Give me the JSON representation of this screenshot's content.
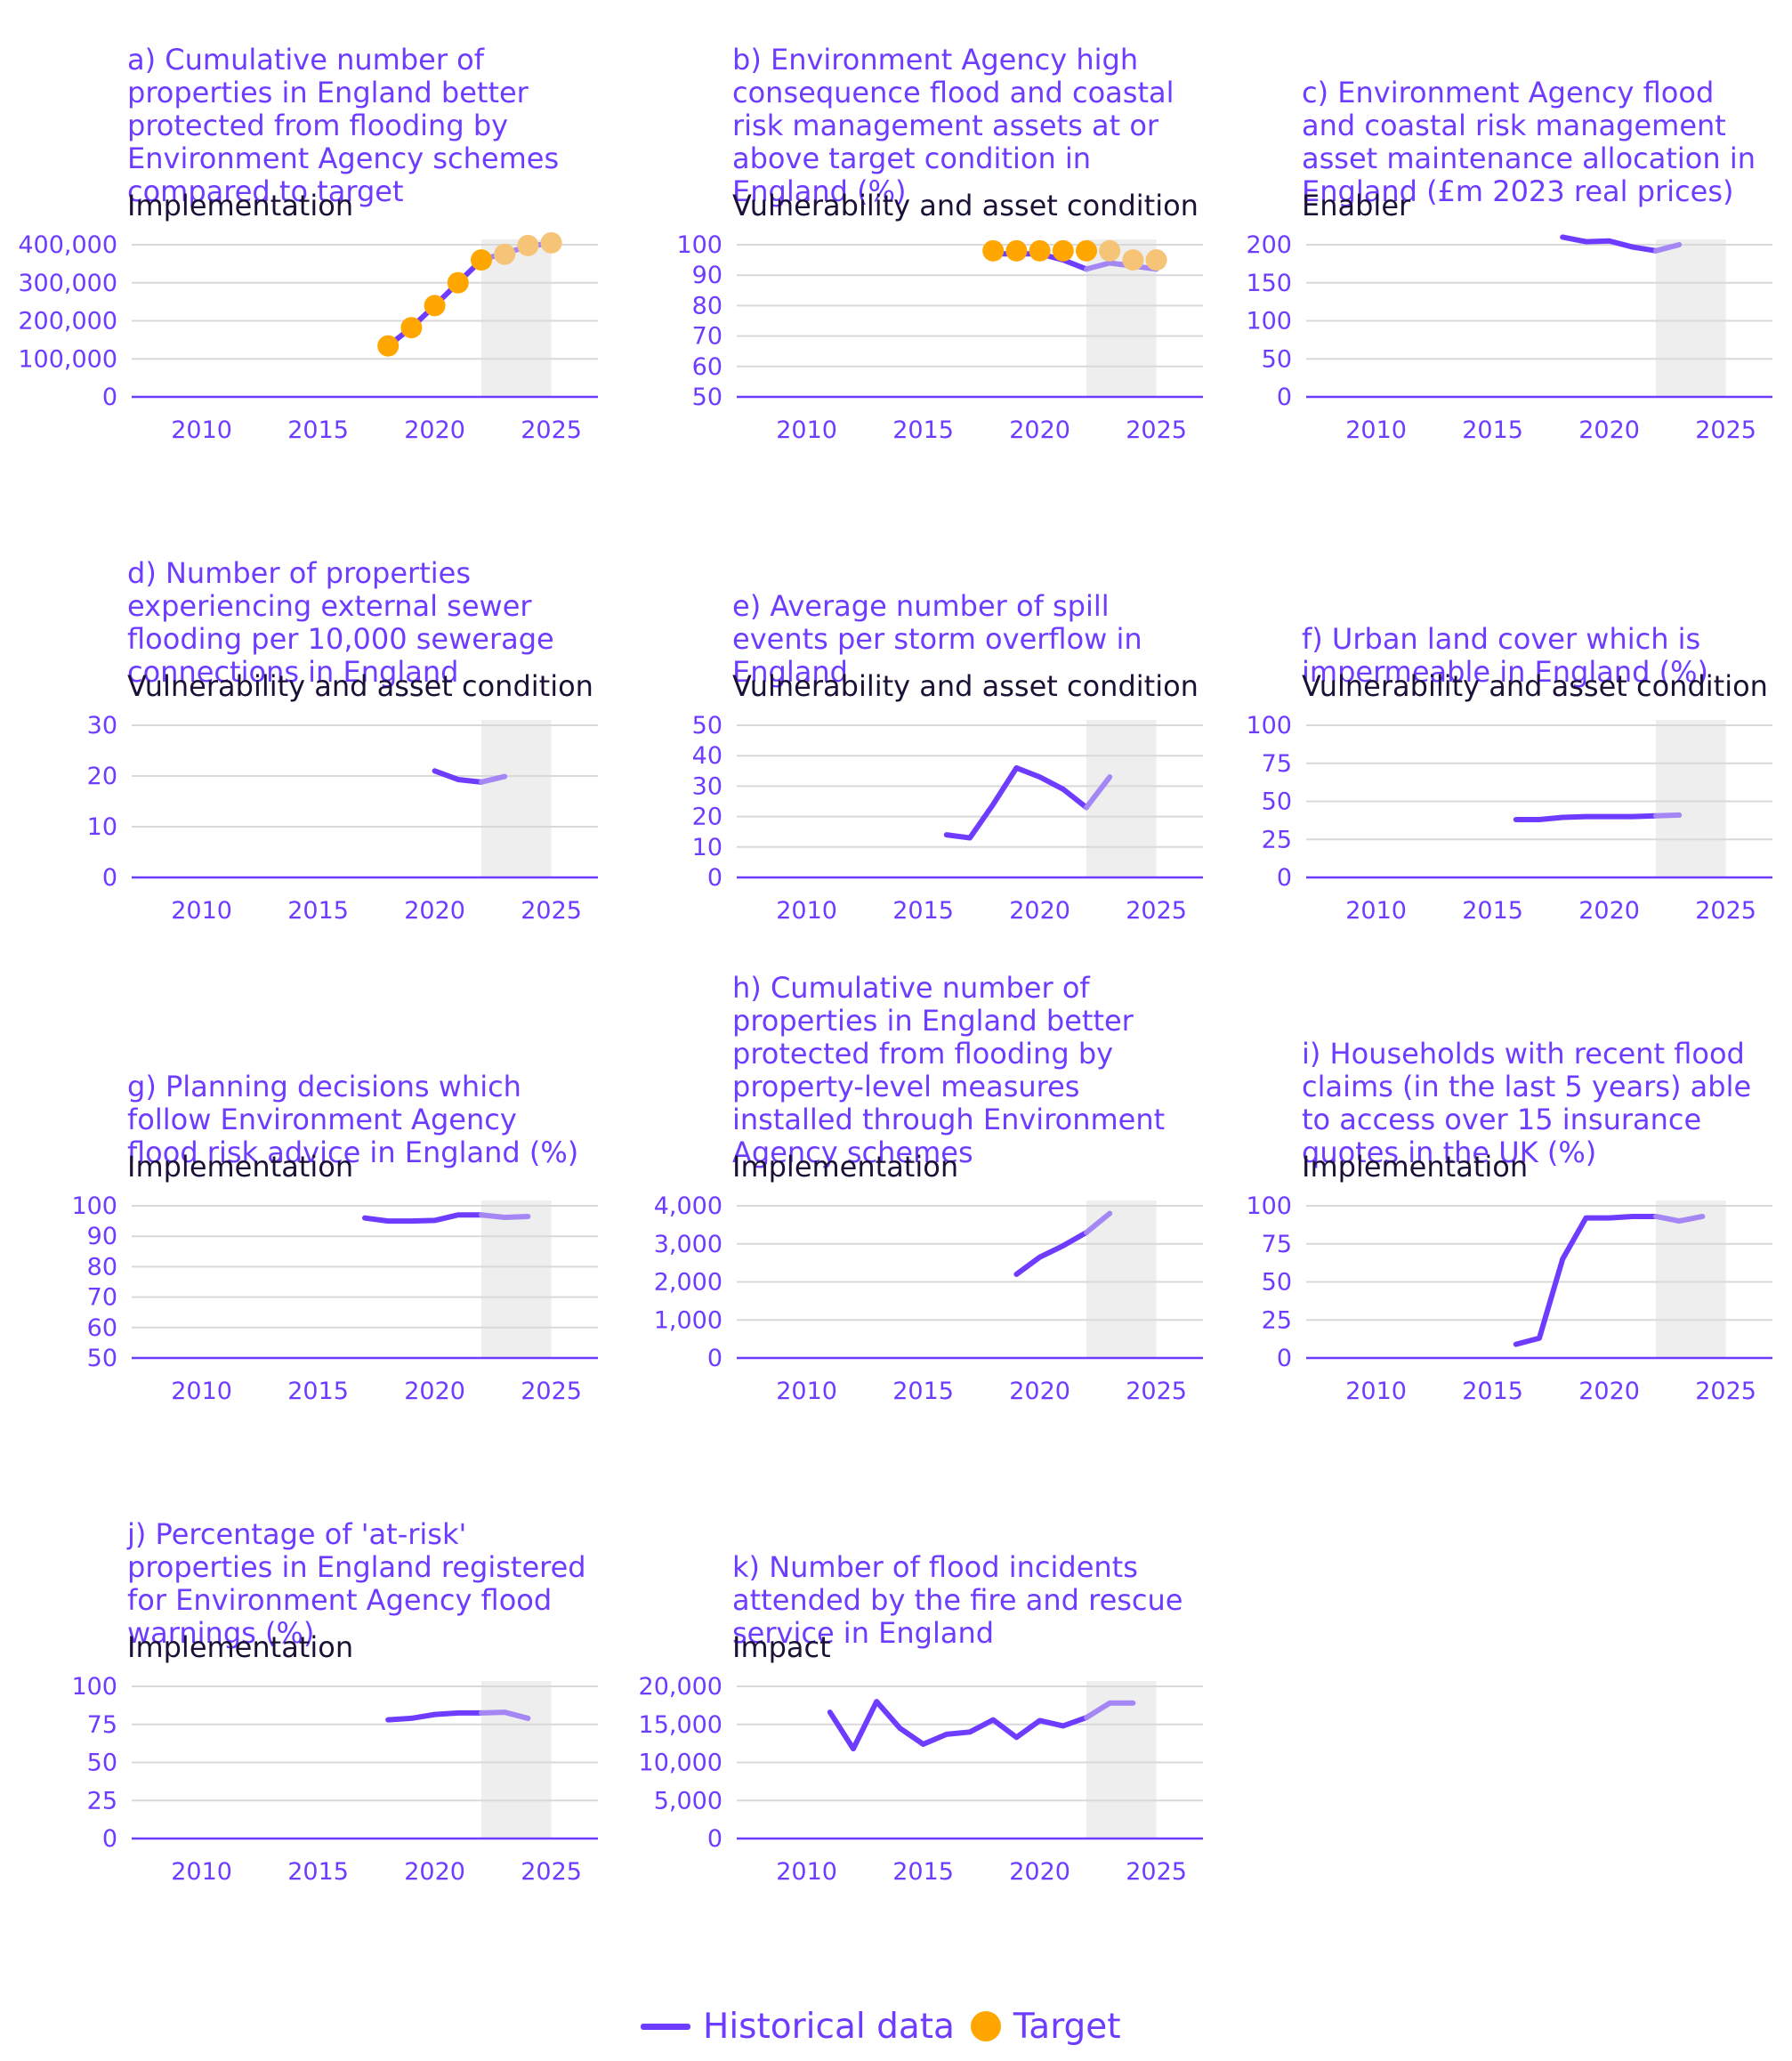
{
  "chart_data": [
    {
      "id": "a",
      "type": "line",
      "title": "a) Cumulative number of properties in England better protected from flooding by Environment Agency schemes compared to target",
      "subtitle": "Implementation",
      "xlim": [
        2007,
        2027
      ],
      "xticks": [
        2010,
        2015,
        2020,
        2025
      ],
      "ylim": [
        0,
        400000
      ],
      "yticks": [
        0,
        100000,
        200000,
        300000,
        400000
      ],
      "ytick_labels": [
        "0",
        "100,000",
        "200,000",
        "300,000",
        "400,000"
      ],
      "shade": [
        2022,
        2025
      ],
      "series": [
        {
          "name": "Historical data",
          "x": [
            2018,
            2019,
            2020,
            2021,
            2022
          ],
          "y": [
            134000,
            182000,
            240000,
            300000,
            360000
          ]
        },
        {
          "name": "Historical data",
          "x": [
            2022,
            2023,
            2024,
            2025
          ],
          "y": [
            360000,
            378000,
            395000,
            405000
          ],
          "style": "light"
        }
      ],
      "targets": {
        "name": "Target",
        "x": [
          2018,
          2019,
          2020,
          2021,
          2022,
          2023,
          2024,
          2025
        ],
        "y": [
          134000,
          182000,
          240000,
          300000,
          360000,
          375000,
          398000,
          405000
        ]
      }
    },
    {
      "id": "b",
      "type": "line",
      "title": "b) Environment Agency high consequence flood and coastal risk management assets at or above target condition in England (%)",
      "subtitle": "Vulnerability and asset condition",
      "xlim": [
        2007,
        2027
      ],
      "xticks": [
        2010,
        2015,
        2020,
        2025
      ],
      "ylim": [
        50,
        100
      ],
      "yticks": [
        50,
        60,
        70,
        80,
        90,
        100
      ],
      "ytick_labels": [
        "50",
        "60",
        "70",
        "80",
        "90",
        "100"
      ],
      "shade": [
        2022,
        2025
      ],
      "series": [
        {
          "name": "Historical data",
          "x": [
            2018,
            2019,
            2020,
            2021,
            2022
          ],
          "y": [
            97,
            97,
            97,
            95,
            92
          ]
        },
        {
          "name": "Historical data",
          "x": [
            2022,
            2023,
            2024,
            2025
          ],
          "y": [
            92,
            94,
            93,
            92
          ],
          "style": "light"
        }
      ],
      "targets": {
        "name": "Target",
        "x": [
          2018,
          2019,
          2020,
          2021,
          2022,
          2023,
          2024,
          2025
        ],
        "y": [
          98,
          98,
          98,
          98,
          98,
          98,
          95,
          95
        ]
      }
    },
    {
      "id": "c",
      "type": "line",
      "title": "c) Environment Agency flood and coastal risk management asset maintenance allocation in England (£m 2023 real prices)",
      "subtitle": "Enabler",
      "xlim": [
        2007,
        2027
      ],
      "xticks": [
        2010,
        2015,
        2020,
        2025
      ],
      "ylim": [
        0,
        200
      ],
      "yticks": [
        0,
        50,
        100,
        150,
        200
      ],
      "ytick_labels": [
        "0",
        "50",
        "100",
        "150",
        "200"
      ],
      "shade": [
        2022,
        2025
      ],
      "series": [
        {
          "name": "Historical data",
          "x": [
            2018,
            2019,
            2020,
            2021,
            2022
          ],
          "y": [
            210,
            204,
            205,
            197,
            192
          ]
        },
        {
          "name": "Historical data",
          "x": [
            2022,
            2023
          ],
          "y": [
            192,
            200
          ],
          "style": "light"
        }
      ]
    },
    {
      "id": "d",
      "type": "line",
      "title": "d) Number of properties experiencing external sewer flooding per 10,000 sewerage connections in England",
      "subtitle": "Vulnerability and asset condition",
      "xlim": [
        2007,
        2027
      ],
      "xticks": [
        2010,
        2015,
        2020,
        2025
      ],
      "ylim": [
        0,
        30
      ],
      "yticks": [
        0,
        10,
        20,
        30
      ],
      "ytick_labels": [
        "0",
        "10",
        "20",
        "30"
      ],
      "shade": [
        2022,
        2025
      ],
      "series": [
        {
          "name": "Historical data",
          "x": [
            2020,
            2021,
            2022
          ],
          "y": [
            21,
            19.3,
            18.8
          ]
        },
        {
          "name": "Historical data",
          "x": [
            2022,
            2023
          ],
          "y": [
            18.8,
            19.9
          ],
          "style": "light"
        }
      ]
    },
    {
      "id": "e",
      "type": "line",
      "title": "e) Average number of spill events per storm overflow in England",
      "subtitle": "Vulnerability and asset condition",
      "xlim": [
        2007,
        2027
      ],
      "xticks": [
        2010,
        2015,
        2020,
        2025
      ],
      "ylim": [
        0,
        50
      ],
      "yticks": [
        0,
        10,
        20,
        30,
        40,
        50
      ],
      "ytick_labels": [
        "0",
        "10",
        "20",
        "30",
        "40",
        "50"
      ],
      "shade": [
        2022,
        2025
      ],
      "series": [
        {
          "name": "Historical data",
          "x": [
            2016,
            2017,
            2018,
            2019,
            2020,
            2021,
            2022
          ],
          "y": [
            14,
            13,
            24,
            36,
            33,
            29,
            23
          ]
        },
        {
          "name": "Historical data",
          "x": [
            2022,
            2023
          ],
          "y": [
            23,
            33
          ],
          "style": "light"
        }
      ]
    },
    {
      "id": "f",
      "type": "line",
      "title": "f) Urban land cover which is impermeable in England (%)",
      "subtitle": "Vulnerability and asset condition",
      "xlim": [
        2007,
        2027
      ],
      "xticks": [
        2010,
        2015,
        2020,
        2025
      ],
      "ylim": [
        0,
        100
      ],
      "yticks": [
        0,
        25,
        50,
        75,
        100
      ],
      "ytick_labels": [
        "0",
        "25",
        "50",
        "75",
        "100"
      ],
      "shade": [
        2022,
        2025
      ],
      "series": [
        {
          "name": "Historical data",
          "x": [
            2016,
            2017,
            2018,
            2019,
            2020,
            2021,
            2022
          ],
          "y": [
            38,
            38,
            39.5,
            40,
            40,
            40,
            40.5
          ]
        },
        {
          "name": "Historical data",
          "x": [
            2022,
            2023
          ],
          "y": [
            40.5,
            41
          ],
          "style": "light"
        }
      ]
    },
    {
      "id": "g",
      "type": "line",
      "title": "g) Planning decisions which follow Environment Agency flood risk advice in England (%)",
      "subtitle": "Implementation",
      "xlim": [
        2007,
        2027
      ],
      "xticks": [
        2010,
        2015,
        2020,
        2025
      ],
      "ylim": [
        50,
        100
      ],
      "yticks": [
        50,
        60,
        70,
        80,
        90,
        100
      ],
      "ytick_labels": [
        "50",
        "60",
        "70",
        "80",
        "90",
        "100"
      ],
      "shade": [
        2022,
        2025
      ],
      "series": [
        {
          "name": "Historical data",
          "x": [
            2017,
            2018,
            2019,
            2020,
            2021,
            2022
          ],
          "y": [
            96,
            95,
            95,
            95.2,
            97,
            97
          ]
        },
        {
          "name": "Historical data",
          "x": [
            2022,
            2023,
            2024
          ],
          "y": [
            97,
            96.2,
            96.5
          ],
          "style": "light"
        }
      ]
    },
    {
      "id": "h",
      "type": "line",
      "title": "h) Cumulative number of properties in England better protected from flooding by property-level measures installed through Environment Agency schemes",
      "subtitle": "Implementation",
      "xlim": [
        2007,
        2027
      ],
      "xticks": [
        2010,
        2015,
        2020,
        2025
      ],
      "ylim": [
        0,
        4000
      ],
      "yticks": [
        0,
        1000,
        2000,
        3000,
        4000
      ],
      "ytick_labels": [
        "0",
        "1,000",
        "2,000",
        "3,000",
        "4,000"
      ],
      "shade": [
        2022,
        2025
      ],
      "series": [
        {
          "name": "Historical data",
          "x": [
            2019,
            2020,
            2021,
            2022
          ],
          "y": [
            2200,
            2650,
            2950,
            3300
          ]
        },
        {
          "name": "Historical data",
          "x": [
            2022,
            2023
          ],
          "y": [
            3300,
            3800
          ],
          "style": "light"
        }
      ]
    },
    {
      "id": "i",
      "type": "line",
      "title": "i) Households with recent flood claims (in the last 5 years) able to access over 15 insurance quotes in the UK (%)",
      "subtitle": "Implementation",
      "xlim": [
        2007,
        2027
      ],
      "xticks": [
        2010,
        2015,
        2020,
        2025
      ],
      "ylim": [
        0,
        100
      ],
      "yticks": [
        0,
        25,
        50,
        75,
        100
      ],
      "ytick_labels": [
        "0",
        "25",
        "50",
        "75",
        "100"
      ],
      "shade": [
        2022,
        2025
      ],
      "series": [
        {
          "name": "Historical data",
          "x": [
            2016,
            2017,
            2018,
            2019,
            2020,
            2021,
            2022
          ],
          "y": [
            9,
            13,
            65,
            92,
            92,
            93,
            93
          ]
        },
        {
          "name": "Historical data",
          "x": [
            2022,
            2023,
            2024
          ],
          "y": [
            93,
            90,
            93
          ],
          "style": "light"
        }
      ]
    },
    {
      "id": "j",
      "type": "line",
      "title": "j) Percentage of 'at-risk' properties in England registered for Environment Agency flood warnings (%)",
      "subtitle": "Implementation",
      "xlim": [
        2007,
        2027
      ],
      "xticks": [
        2010,
        2015,
        2020,
        2025
      ],
      "ylim": [
        0,
        100
      ],
      "yticks": [
        0,
        25,
        50,
        75,
        100
      ],
      "ytick_labels": [
        "0",
        "25",
        "50",
        "75",
        "100"
      ],
      "shade": [
        2022,
        2025
      ],
      "series": [
        {
          "name": "Historical data",
          "x": [
            2018,
            2019,
            2020,
            2021,
            2022
          ],
          "y": [
            78,
            79,
            81.5,
            82.5,
            82.5
          ]
        },
        {
          "name": "Historical data",
          "x": [
            2022,
            2023,
            2024
          ],
          "y": [
            82.5,
            83,
            79
          ],
          "style": "light"
        }
      ]
    },
    {
      "id": "k",
      "type": "line",
      "title": "k) Number of flood incidents attended by the fire and rescue service in England",
      "subtitle": "Impact",
      "xlim": [
        2007,
        2027
      ],
      "xticks": [
        2010,
        2015,
        2020,
        2025
      ],
      "ylim": [
        0,
        20000
      ],
      "yticks": [
        0,
        5000,
        10000,
        15000,
        20000
      ],
      "ytick_labels": [
        "0",
        "5,000",
        "10,000",
        "15,000",
        "20,000"
      ],
      "shade": [
        2022,
        2025
      ],
      "series": [
        {
          "name": "Historical data",
          "x": [
            2011,
            2012,
            2013,
            2014,
            2015,
            2016,
            2017,
            2018,
            2019,
            2020,
            2021,
            2022
          ],
          "y": [
            16600,
            11800,
            18000,
            14500,
            12400,
            13700,
            14000,
            15600,
            13300,
            15500,
            14800,
            15900
          ]
        },
        {
          "name": "Historical data",
          "x": [
            2022,
            2023,
            2024
          ],
          "y": [
            15900,
            17800,
            17800
          ],
          "style": "light"
        }
      ]
    }
  ],
  "legend": {
    "historical_label": "Historical data",
    "target_label": "Target"
  },
  "colors": {
    "historical": "#6e3cff",
    "historical_light": "#a487f4",
    "target": "#ffa600",
    "target_light": "#f6c477",
    "shade": "#eeeeee",
    "grid": "#d9d9d9",
    "title": "#6e3cff",
    "subtitle": "#1b1035"
  }
}
